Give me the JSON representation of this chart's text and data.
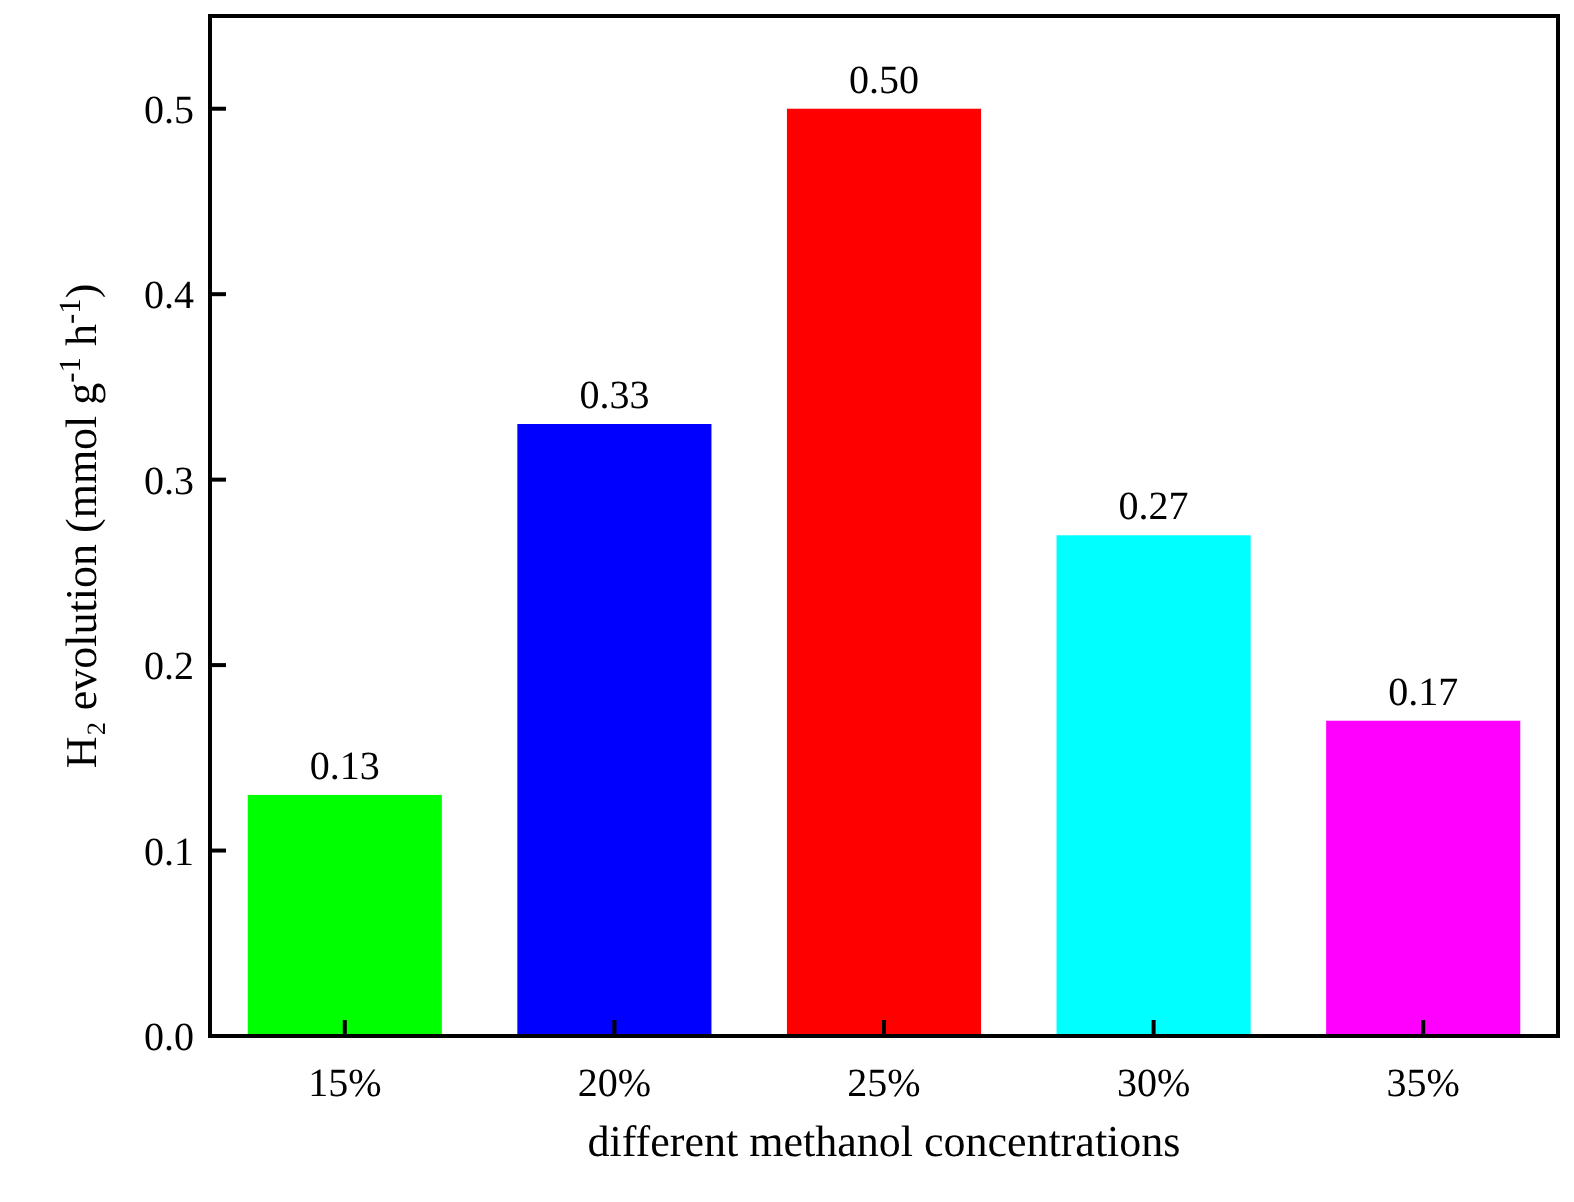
{
  "chart_data": {
    "type": "bar",
    "xlabel": "different methanol concentrations",
    "ylabel": "H₂ evolution (mmol g$^{-1}$ h$^{-1}$)",
    "categories": [
      "15%",
      "20%",
      "25%",
      "30%",
      "35%"
    ],
    "values": [
      0.13,
      0.33,
      0.5,
      0.27,
      0.17
    ],
    "value_labels": [
      "0.13",
      "0.33",
      "0.50",
      "0.27",
      "0.17"
    ],
    "colors": [
      "#00ff00",
      "#0000ff",
      "#ff0000",
      "#00ffff",
      "#ff00ff"
    ],
    "ylim": [
      0,
      0.55
    ],
    "yticks": [
      {
        "value": 0,
        "label": "0.0"
      },
      0.1,
      0.2,
      0.3,
      0.4,
      0.5
    ],
    "grid": false
  }
}
